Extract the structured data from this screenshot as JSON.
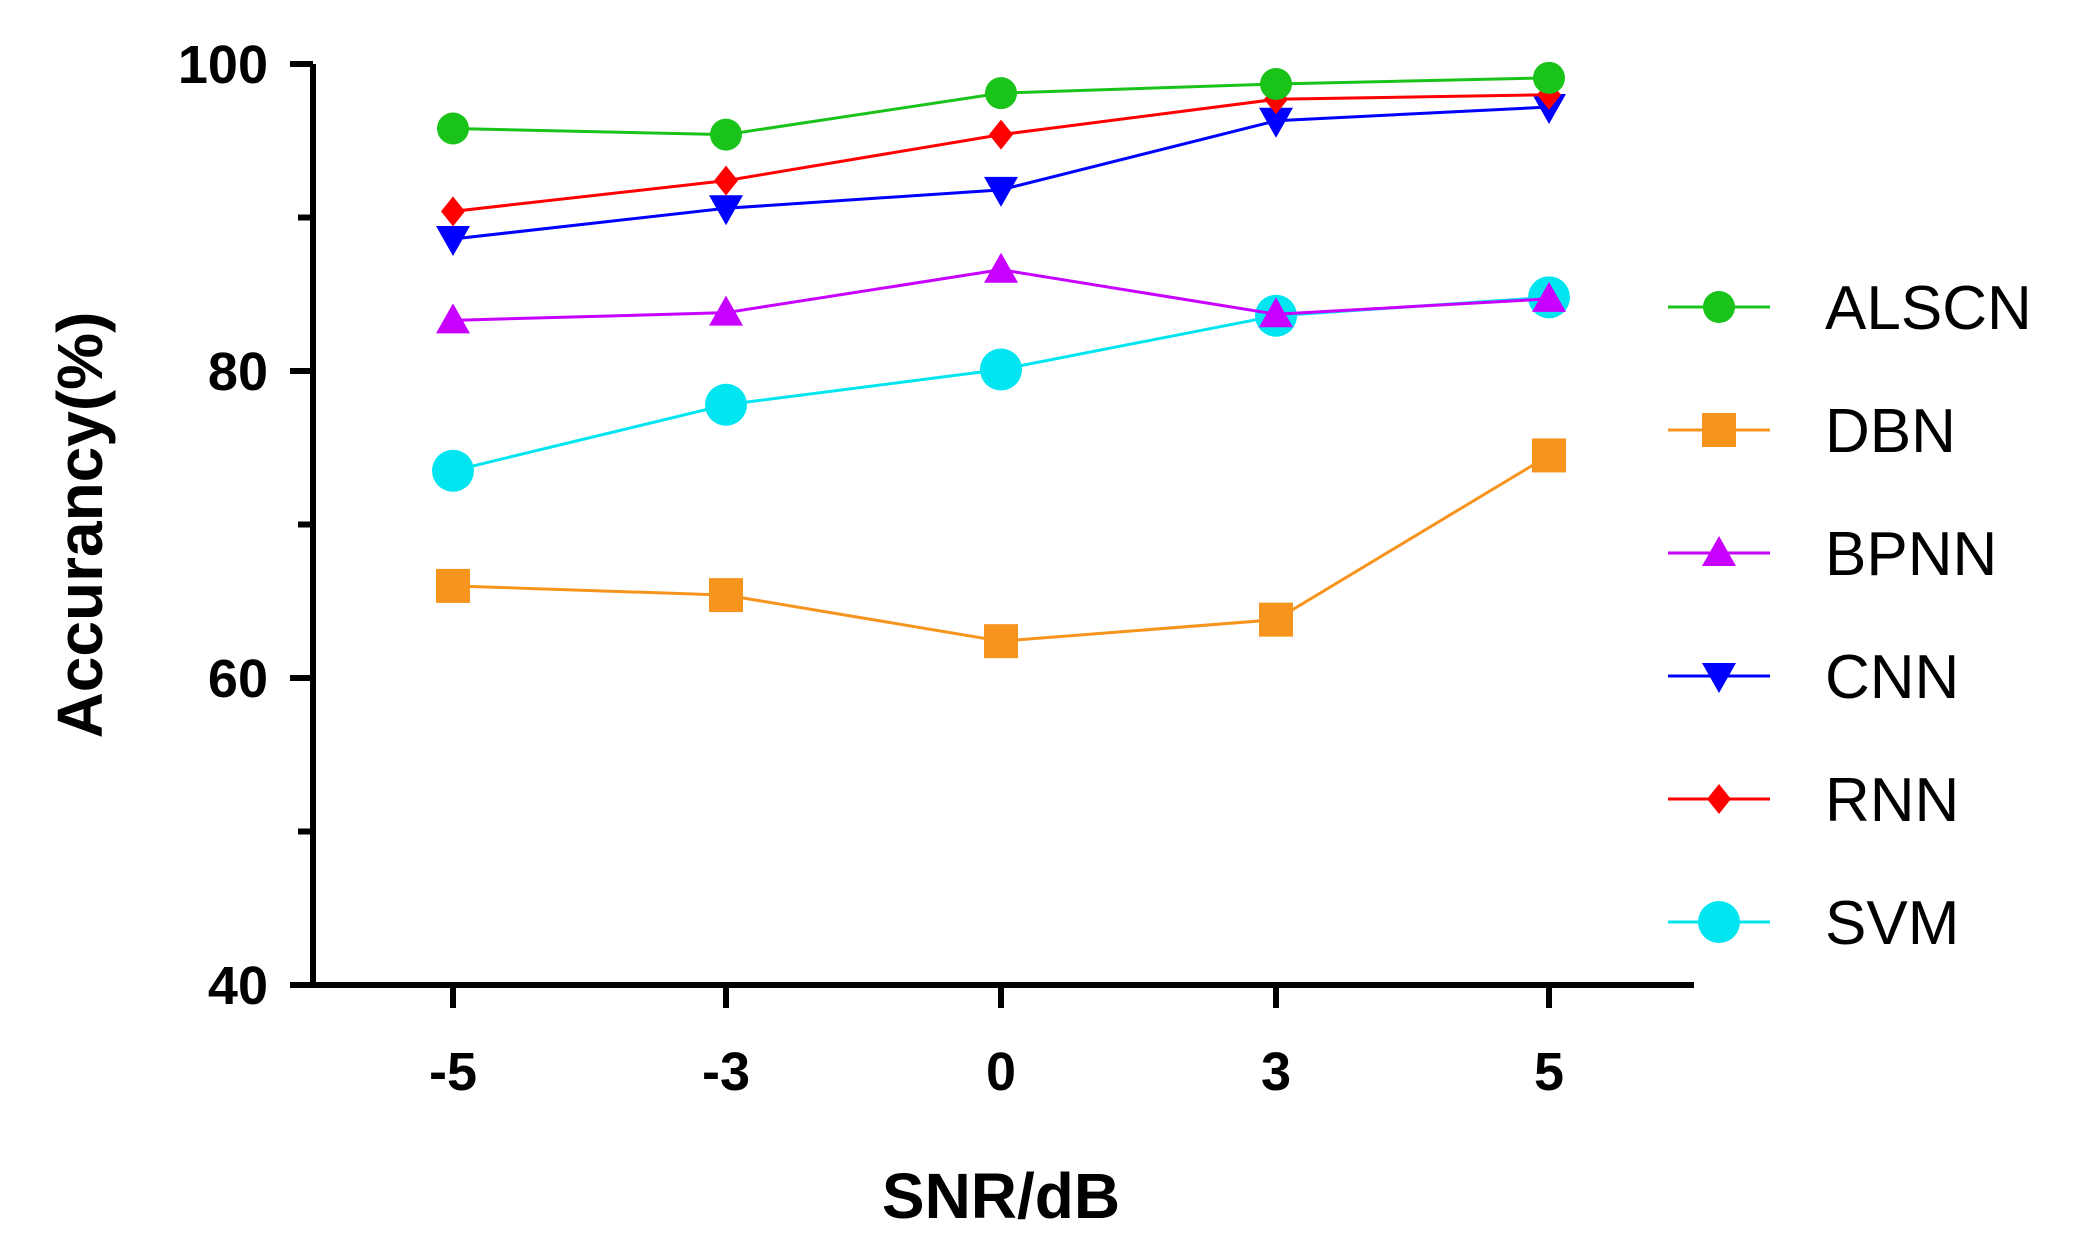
{
  "chart_data": {
    "type": "line",
    "title": "",
    "xlabel": "SNR/dB",
    "ylabel": "Accurancy(%)",
    "categories": [
      "-5",
      "-3",
      "0",
      "3",
      "5"
    ],
    "ylim": [
      40,
      100
    ],
    "y_ticks": [
      "40",
      "60",
      "80",
      "100"
    ],
    "y_minor_ticks": [
      50,
      70,
      90
    ],
    "legend_position": "right",
    "grid": false,
    "series": [
      {
        "name": "ALSCN",
        "color": "#19c319",
        "marker": "circle",
        "values": [
          95.8,
          95.4,
          98.1,
          98.7,
          99.1
        ]
      },
      {
        "name": "DBN",
        "color": "#f7941d",
        "marker": "square",
        "values": [
          66.0,
          65.4,
          62.4,
          63.8,
          74.5
        ]
      },
      {
        "name": "BPNN",
        "color": "#c800ff",
        "marker": "triangle-up",
        "values": [
          83.3,
          83.8,
          86.6,
          83.7,
          84.7
        ]
      },
      {
        "name": "CNN",
        "color": "#0000ff",
        "marker": "triangle-down",
        "values": [
          88.6,
          90.6,
          91.8,
          96.3,
          97.2
        ]
      },
      {
        "name": "RNN",
        "color": "#ff0000",
        "marker": "diamond",
        "values": [
          90.4,
          92.4,
          95.4,
          97.7,
          98.0
        ]
      },
      {
        "name": "SVM",
        "color": "#00e5f0",
        "marker": "circle-large",
        "values": [
          73.5,
          77.8,
          80.1,
          83.6,
          84.8
        ]
      }
    ]
  }
}
